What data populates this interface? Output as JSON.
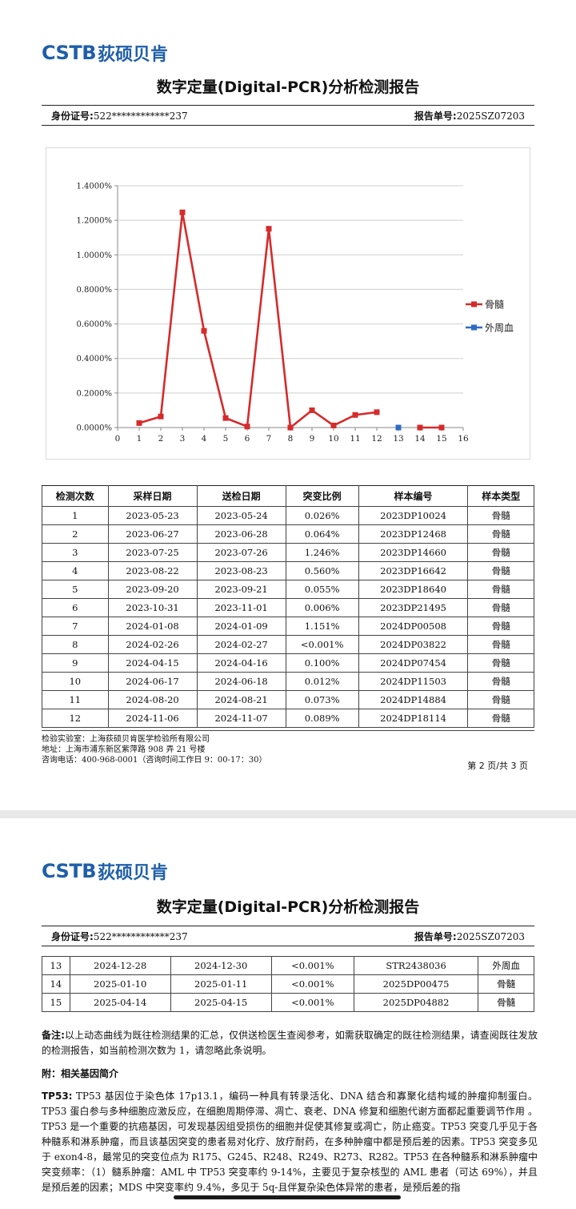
{
  "brand": {
    "latin": "CSTB",
    "chinese": "荻硕贝肯"
  },
  "report_title": "数字定量(Digital-PCR)分析检测报告",
  "meta": {
    "id_label": "身份证号:",
    "id_value": "522************237",
    "report_label": "报告单号:",
    "report_value": "2025SZ07203"
  },
  "colors": {
    "bone_marrow": "#d52b2b",
    "peripheral_blood": "#2e6cc4",
    "brand": "#1f5fa8"
  },
  "chart_data": {
    "type": "line",
    "x": [
      1,
      2,
      3,
      4,
      5,
      6,
      7,
      8,
      9,
      10,
      11,
      12,
      13,
      14,
      15
    ],
    "xlim": [
      0,
      16
    ],
    "x_ticks": [
      "0",
      "1",
      "2",
      "3",
      "4",
      "5",
      "6",
      "7",
      "8",
      "9",
      "10",
      "11",
      "12",
      "13",
      "14",
      "15",
      "16"
    ],
    "ylim": [
      0,
      1.4
    ],
    "y_ticks": [
      "0.0000%",
      "0.2000%",
      "0.4000%",
      "0.6000%",
      "0.8000%",
      "1.0000%",
      "1.2000%",
      "1.4000%"
    ],
    "grid": true,
    "legend_position": "right",
    "series": [
      {
        "name": "骨髓",
        "color": "#d52b2b",
        "segments": [
          [
            [
              1,
              0.026
            ],
            [
              2,
              0.064
            ],
            [
              3,
              1.246
            ],
            [
              4,
              0.56
            ],
            [
              5,
              0.055
            ],
            [
              6,
              0.006
            ],
            [
              7,
              1.151
            ],
            [
              8,
              0.0
            ],
            [
              9,
              0.1
            ],
            [
              10,
              0.012
            ],
            [
              11,
              0.073
            ],
            [
              12,
              0.089
            ]
          ],
          [
            [
              14,
              0.0
            ],
            [
              15,
              0.0
            ]
          ]
        ]
      },
      {
        "name": "外周血",
        "color": "#2e6cc4",
        "segments": [
          [
            [
              13,
              0.0
            ]
          ]
        ]
      }
    ]
  },
  "table": {
    "headers": [
      "检测次数",
      "采样日期",
      "送检日期",
      "突变比例",
      "样本编号",
      "样本类型"
    ],
    "rows_page1": [
      [
        "1",
        "2023-05-23",
        "2023-05-24",
        "0.026%",
        "2023DP10024",
        "骨髓"
      ],
      [
        "2",
        "2023-06-27",
        "2023-06-28",
        "0.064%",
        "2023DP12468",
        "骨髓"
      ],
      [
        "3",
        "2023-07-25",
        "2023-07-26",
        "1.246%",
        "2023DP14660",
        "骨髓"
      ],
      [
        "4",
        "2023-08-22",
        "2023-08-23",
        "0.560%",
        "2023DP16642",
        "骨髓"
      ],
      [
        "5",
        "2023-09-20",
        "2023-09-21",
        "0.055%",
        "2023DP18640",
        "骨髓"
      ],
      [
        "6",
        "2023-10-31",
        "2023-11-01",
        "0.006%",
        "2023DP21495",
        "骨髓"
      ],
      [
        "7",
        "2024-01-08",
        "2024-01-09",
        "1.151%",
        "2024DP00508",
        "骨髓"
      ],
      [
        "8",
        "2024-02-26",
        "2024-02-27",
        "<0.001%",
        "2024DP03822",
        "骨髓"
      ],
      [
        "9",
        "2024-04-15",
        "2024-04-16",
        "0.100%",
        "2024DP07454",
        "骨髓"
      ],
      [
        "10",
        "2024-06-17",
        "2024-06-18",
        "0.012%",
        "2024DP11503",
        "骨髓"
      ],
      [
        "11",
        "2024-08-20",
        "2024-08-21",
        "0.073%",
        "2024DP14884",
        "骨髓"
      ],
      [
        "12",
        "2024-11-06",
        "2024-11-07",
        "0.089%",
        "2024DP18114",
        "骨髓"
      ]
    ],
    "rows_page2": [
      [
        "13",
        "2024-12-28",
        "2024-12-30",
        "<0.001%",
        "STR2438036",
        "外周血"
      ],
      [
        "14",
        "2025-01-10",
        "2025-01-11",
        "<0.001%",
        "2025DP00475",
        "骨髓"
      ],
      [
        "15",
        "2025-04-14",
        "2025-04-15",
        "<0.001%",
        "2025DP04882",
        "骨髓"
      ]
    ]
  },
  "lab": {
    "line1": "检验实验室：上海荻硕贝肯医学检验所有限公司",
    "line2": "地址：上海市浦东新区紫萍路 908 弄 21 号楼",
    "line3": "咨询电话：400-968-0001（咨询时间工作日 9：00-17：30）"
  },
  "page_number": "第 2 页/共 3 页",
  "note": {
    "label": "备注:",
    "text": "以上动态曲线为既往检测结果的汇总，仅供送检医生查阅参考，如需获取确定的既往检测结果，请查阅既往发放的检测报告，如当前检测次数为 1，请忽略此条说明。"
  },
  "appendix_title": "附：相关基因简介",
  "gene": {
    "label": "TP53:",
    "text": " TP53 基因位于染色体 17p13.1，编码一种具有转录活化、DNA 结合和寡聚化结构域的肿瘤抑制蛋白。TP53 蛋白参与多种细胞应激反应，在细胞周期停滞、凋亡、衰老、DNA 修复和细胞代谢方面都起重要调节作用 。TP53 是一个重要的抗癌基因，可发现基因组受损伤的细胞并促使其修复或凋亡，防止癌变。TP53 突变几乎见于各种髓系和淋系肿瘤，而且该基因突变的患者易对化疗、放疗耐药，在多种肿瘤中都是预后差的因素。TP53 突变多见于 exon4-8，最常见的突变位点为 R175、G245、R248、R249、R273、R282。TP53 在各种髓系和淋系肿瘤中突变频率：（1）髓系肿瘤：AML 中 TP53 突变率约 9-14%，主要见于复杂核型的 AML 患者（可达 69%），并且是预后差的因素；MDS 中突变率约 9.4%，多见于 5q-且伴复杂染色体异常的患者，是预后差的指"
  }
}
